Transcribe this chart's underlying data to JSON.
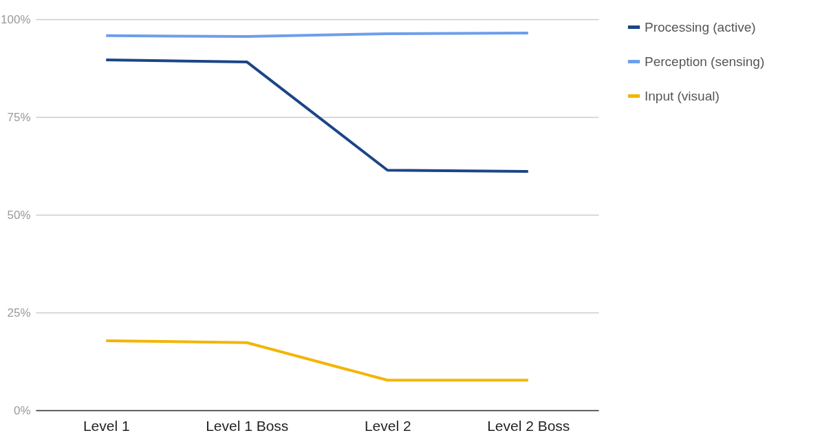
{
  "chart_data": {
    "type": "line",
    "categories": [
      "Level 1",
      "Level 1 Boss",
      "Level 2",
      "Level 2 Boss"
    ],
    "series": [
      {
        "name": "Processing (active)",
        "color": "#1c4587",
        "values": [
          89.6,
          89.1,
          61.4,
          61.1
        ]
      },
      {
        "name": "Perception (sensing)",
        "color": "#6d9eeb",
        "values": [
          95.8,
          95.6,
          96.3,
          96.5
        ]
      },
      {
        "name": "Input (visual)",
        "color": "#f4b400",
        "values": [
          17.8,
          17.3,
          7.7,
          7.7
        ]
      }
    ],
    "ylim": [
      0,
      100
    ],
    "yticks": [
      {
        "value": 0,
        "label": "0%"
      },
      {
        "value": 25,
        "label": "25%"
      },
      {
        "value": 50,
        "label": "50%"
      },
      {
        "value": 75,
        "label": "75%"
      },
      {
        "value": 100,
        "label": "100%"
      }
    ],
    "grid": "y",
    "legend": "right",
    "marker": "none",
    "line_style": "solid"
  }
}
